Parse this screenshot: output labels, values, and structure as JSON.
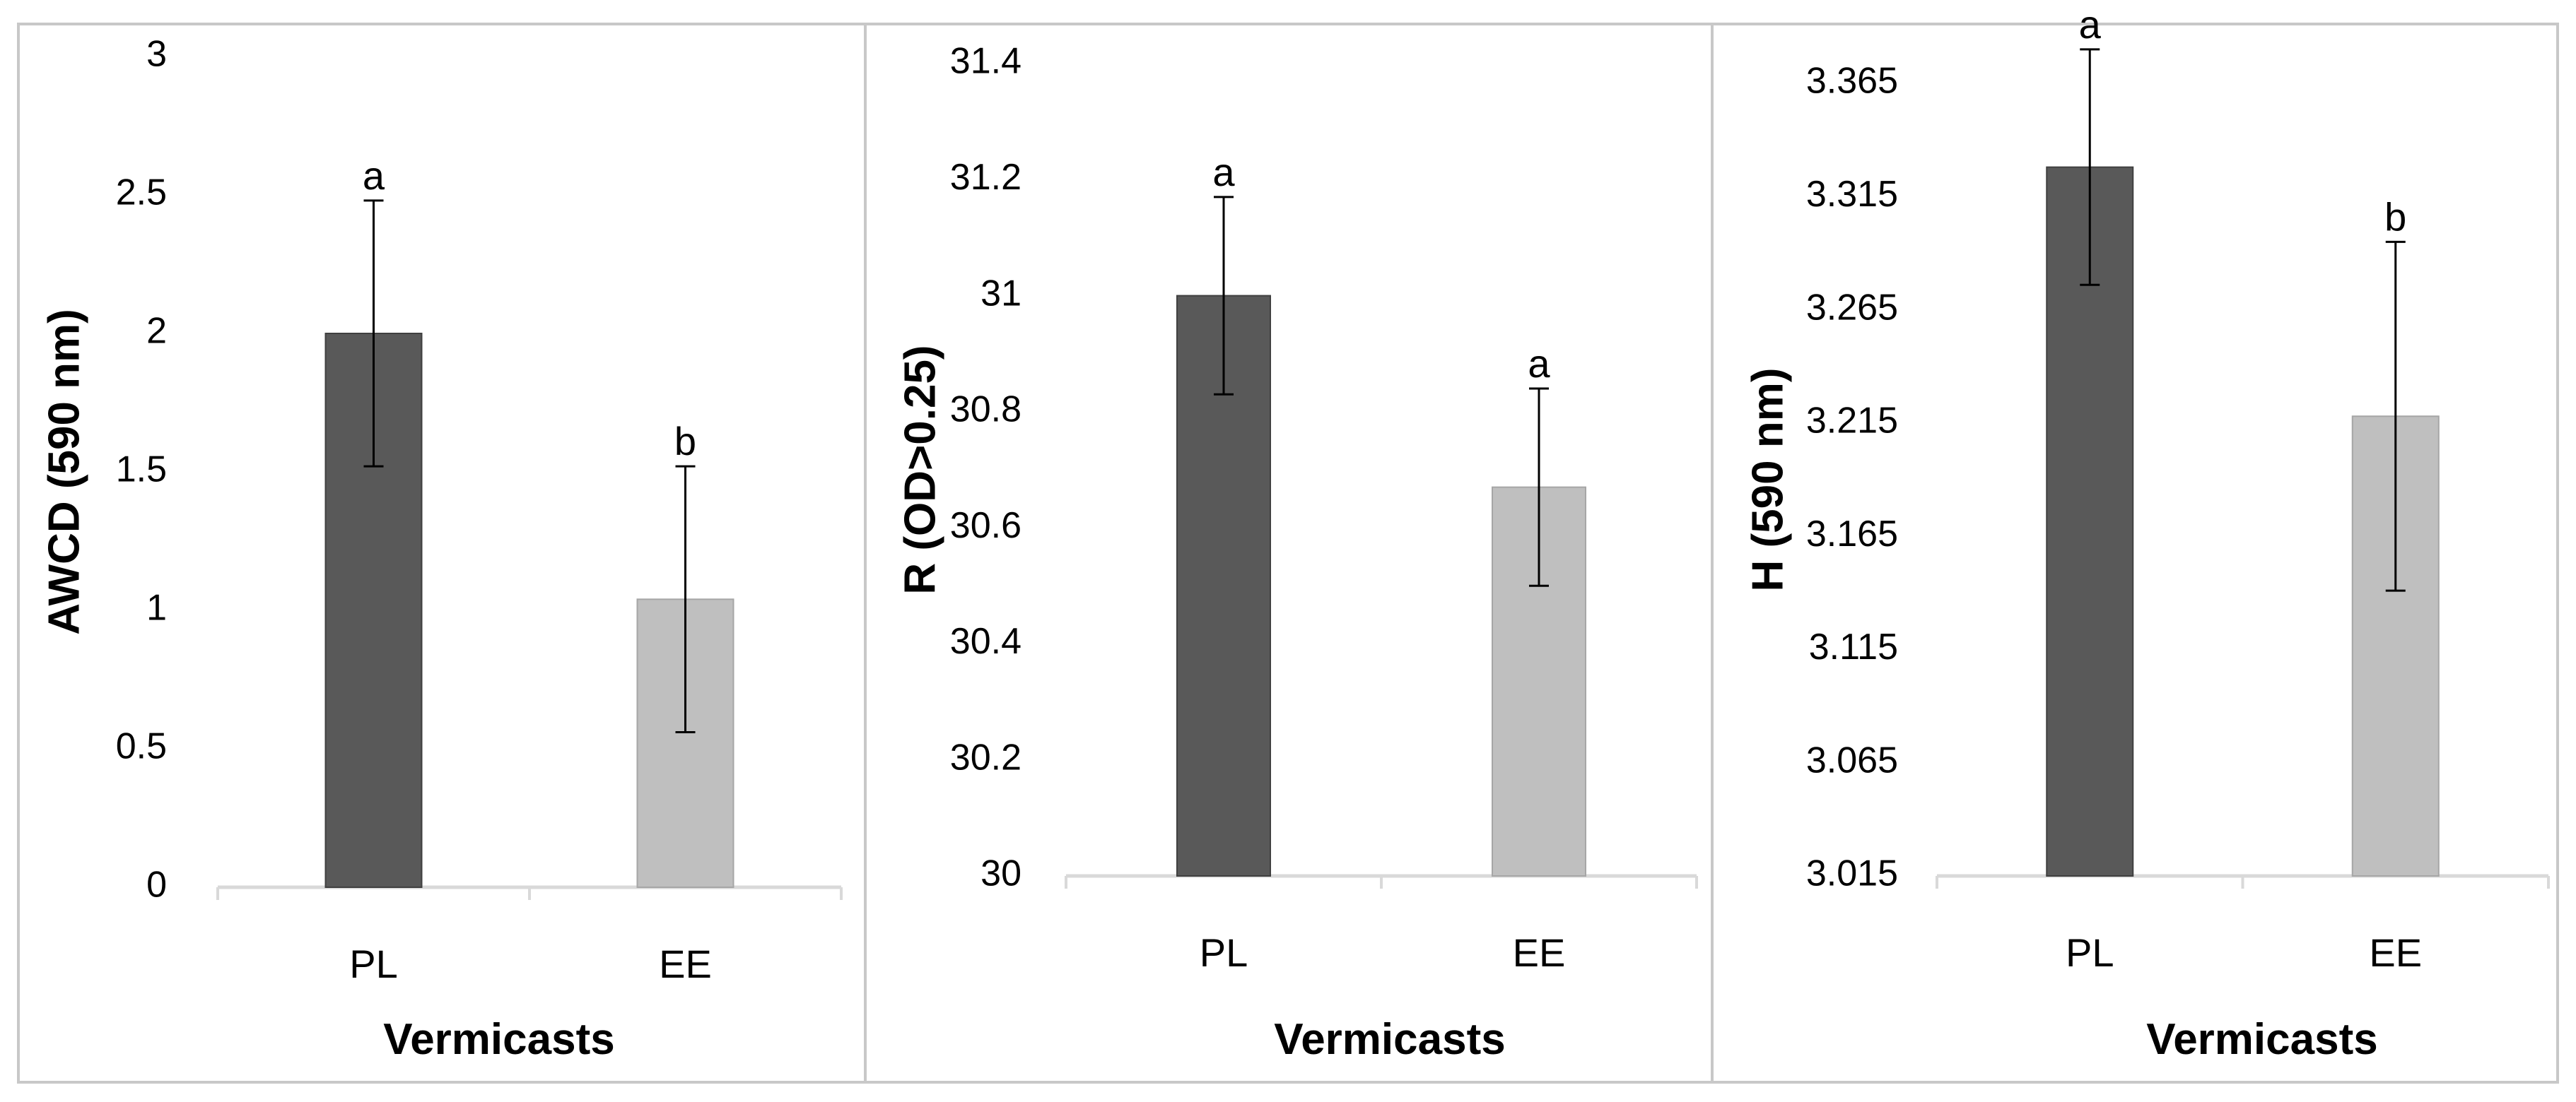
{
  "colors": {
    "PL": "#595959",
    "EE": "#bfbfbf",
    "axis": "#d9d9d9",
    "frame": "#c8c8c8",
    "error": "#000000"
  },
  "chart_data": [
    {
      "type": "bar",
      "title": "",
      "categories": [
        "PL",
        "EE"
      ],
      "values": [
        2.0,
        1.04
      ],
      "errors": [
        0.48,
        0.48
      ],
      "significance": [
        "a",
        "b"
      ],
      "xlabel": "Vermicasts",
      "ylabel": "AWCD (590 nm)",
      "ylim": [
        0,
        3
      ],
      "yticks": [
        "0",
        "0.5",
        "1",
        "1.5",
        "2",
        "2.5",
        "3"
      ],
      "grid": false
    },
    {
      "type": "bar",
      "title": "",
      "categories": [
        "PL",
        "EE"
      ],
      "values": [
        31.0,
        30.67
      ],
      "errors": [
        0.17,
        0.17
      ],
      "significance": [
        "a",
        "a"
      ],
      "xlabel": "Vermicasts",
      "ylabel": "R (OD>0.25)",
      "ylim": [
        30,
        31.4
      ],
      "yticks": [
        "30",
        "30.2",
        "30.4",
        "30.6",
        "30.8",
        "31",
        "31.2",
        "31.4"
      ],
      "grid": false
    },
    {
      "type": "bar",
      "title": "",
      "categories": [
        "PL",
        "EE"
      ],
      "values": [
        3.328,
        3.218
      ],
      "errors": [
        0.052,
        0.077
      ],
      "significance": [
        "a",
        "b"
      ],
      "xlabel": "Vermicasts",
      "ylabel": "H (590 nm)",
      "ylim": [
        3.015,
        3.365
      ],
      "yticks": [
        "3.015",
        "3.065",
        "3.115",
        "3.165",
        "3.215",
        "3.265",
        "3.315",
        "3.365"
      ],
      "grid": false
    }
  ]
}
